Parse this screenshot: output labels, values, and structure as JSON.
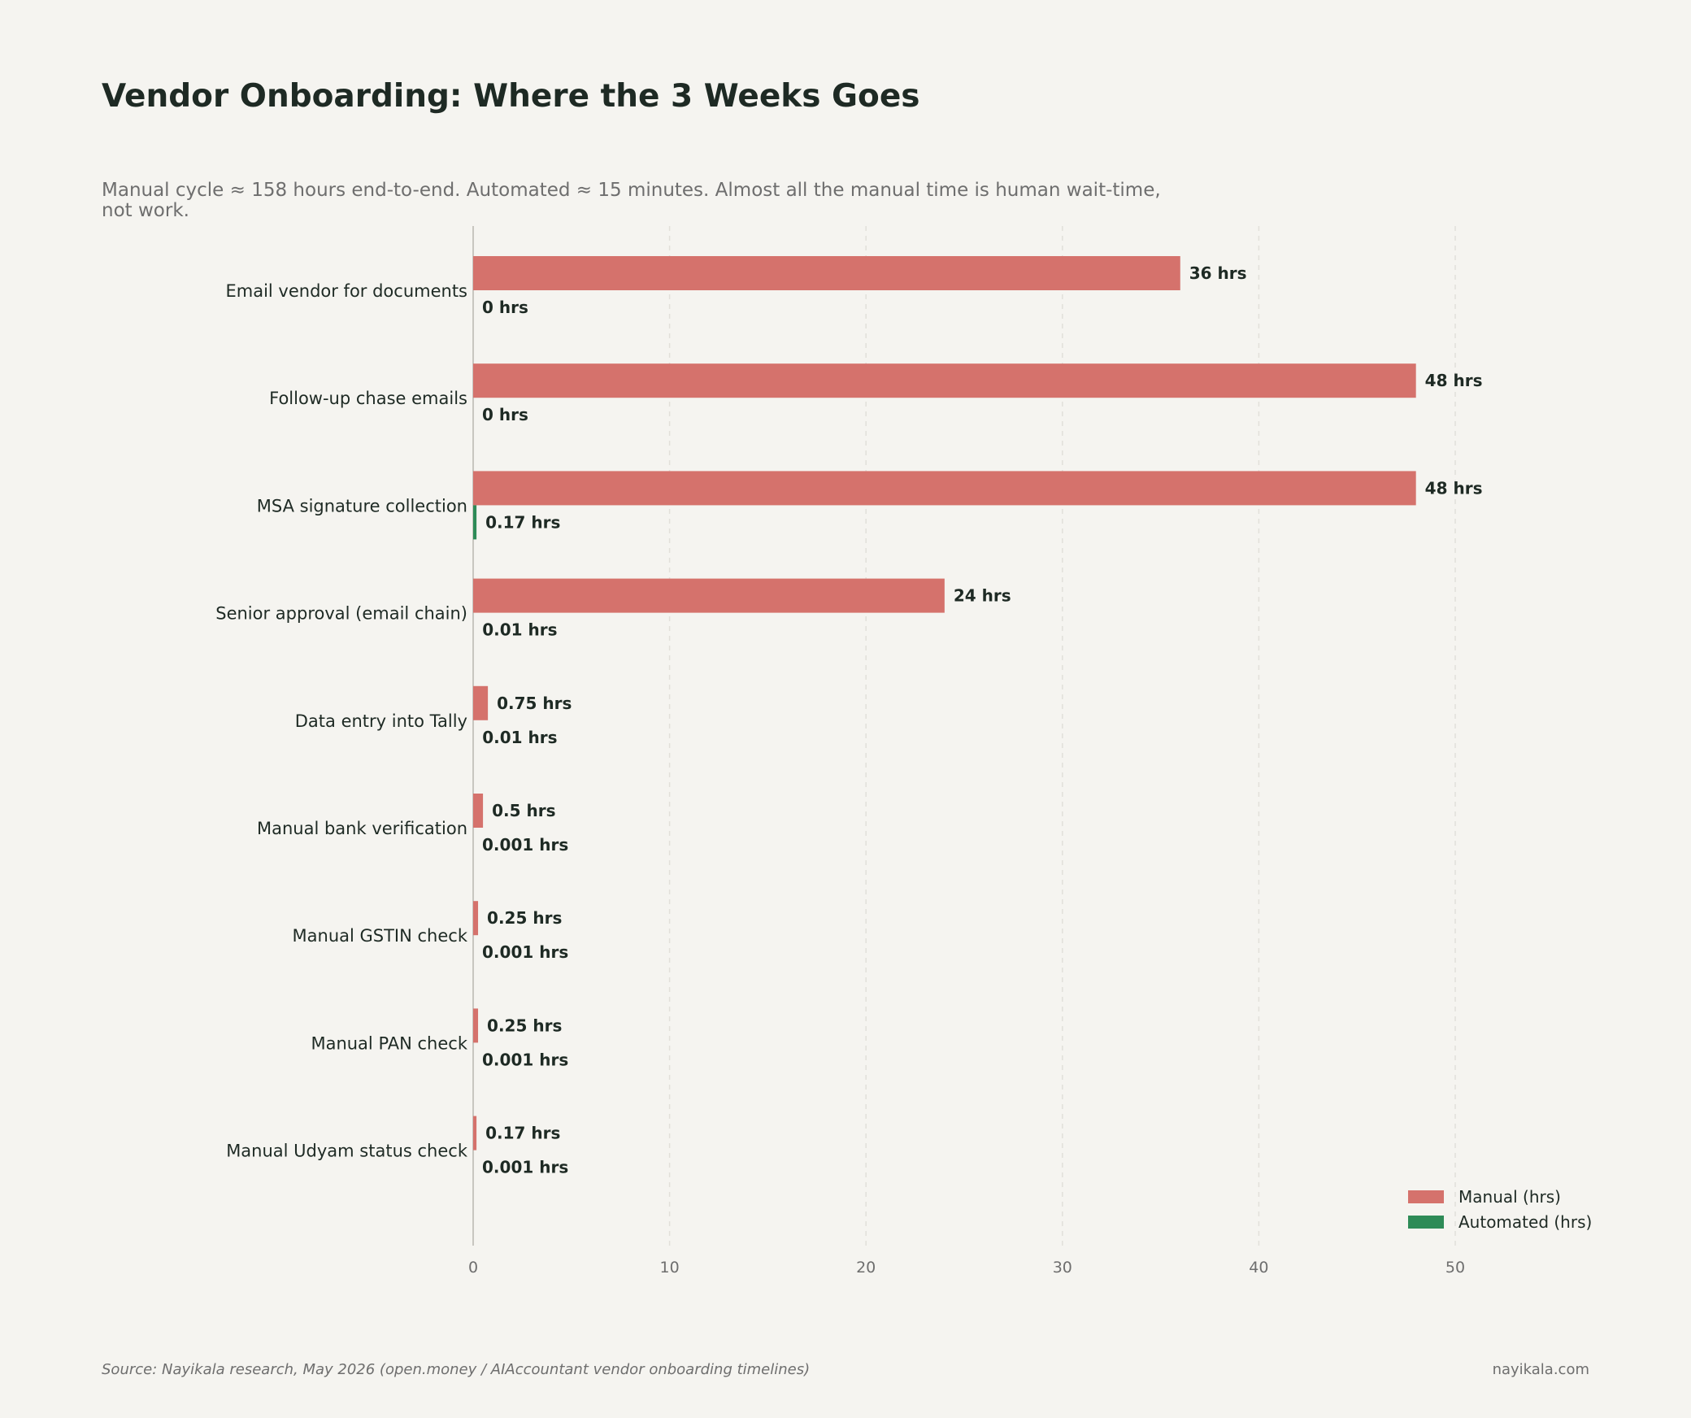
{
  "header": {
    "title": "Vendor Onboarding: Where the 3 Weeks Goes",
    "subtitle": "Manual cycle ≈ 158 hours end-to-end. Automated ≈ 15 minutes. Almost all the manual time is human wait-time, not work."
  },
  "footer": {
    "source": "Source: Nayikala research, May 2026 (open.money / AIAccountant vendor onboarding timelines)",
    "site": "nayikala.com"
  },
  "colors": {
    "manual": "#d5726c",
    "automated": "#2e8b57"
  },
  "chart_data": {
    "type": "bar",
    "orientation": "horizontal",
    "categories": [
      "Email vendor for documents",
      "Follow-up chase emails",
      "MSA signature collection",
      "Senior approval (email chain)",
      "Data entry into Tally",
      "Manual bank verification",
      "Manual GSTIN check",
      "Manual PAN check",
      "Manual Udyam status check"
    ],
    "series": [
      {
        "name": "Manual (hrs)",
        "values": [
          36,
          48,
          48,
          24,
          0.75,
          0.5,
          0.25,
          0.25,
          0.17
        ],
        "labels": [
          "36 hrs",
          "48 hrs",
          "48 hrs",
          "24 hrs",
          "0.75 hrs",
          "0.5 hrs",
          "0.25 hrs",
          "0.25 hrs",
          "0.17 hrs"
        ]
      },
      {
        "name": "Automated (hrs)",
        "values": [
          0,
          0,
          0.17,
          0.01,
          0.01,
          0.001,
          0.001,
          0.001,
          0.001
        ],
        "labels": [
          "0 hrs",
          "0 hrs",
          "0.17 hrs",
          "0.01 hrs",
          "0.01 hrs",
          "0.001 hrs",
          "0.001 hrs",
          "0.001 hrs",
          "0.001 hrs"
        ]
      }
    ],
    "xticks": [
      "0",
      "10",
      "20",
      "30",
      "40",
      "50"
    ],
    "xlim": [
      0,
      57
    ],
    "grid": true,
    "legend_position": "bottom-right"
  }
}
